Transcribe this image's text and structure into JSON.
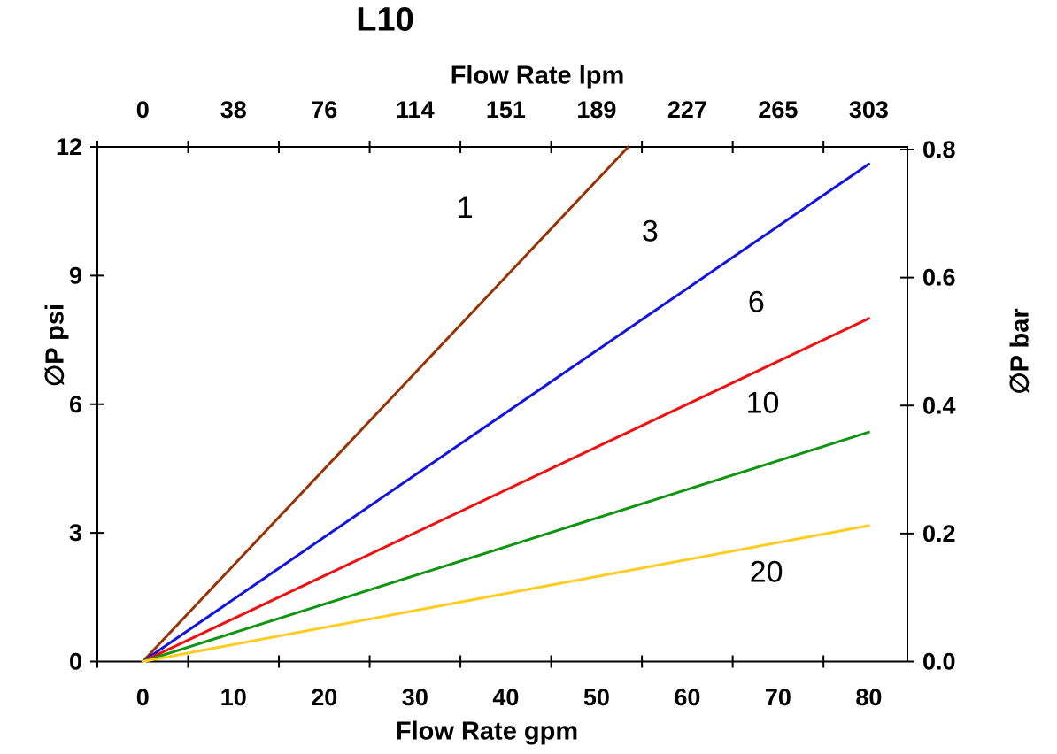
{
  "chart_data": {
    "type": "line",
    "title": "L10",
    "text_color": "#000000",
    "background_color": "#ffffff",
    "axes": {
      "bottom": {
        "label": "Flow Rate gpm",
        "unit": "gpm",
        "range": [
          -5,
          84.25
        ],
        "major_tick_labels": [
          "0",
          "10",
          "20",
          "30",
          "40",
          "50",
          "60",
          "70",
          "80"
        ],
        "major_tick_values": [
          0,
          10,
          20,
          30,
          40,
          50,
          60,
          70,
          80
        ],
        "tick_mark_values": [
          -5,
          5,
          15,
          25,
          35,
          45,
          55,
          65,
          75
        ]
      },
      "top": {
        "label": "Flow Rate lpm",
        "unit": "lpm",
        "major_tick_labels": [
          "0",
          "38",
          "76",
          "114",
          "151",
          "189",
          "227",
          "265",
          "303"
        ],
        "major_tick_values_gpm": [
          0,
          10,
          20,
          30,
          40,
          50,
          60,
          70,
          80
        ],
        "tick_mark_values_gpm": [
          -5,
          5,
          15,
          25,
          35,
          45,
          55,
          65,
          75
        ]
      },
      "left": {
        "label": "∅P psi",
        "unit": "psi",
        "range": [
          0,
          12
        ],
        "major_tick_labels": [
          "0",
          "3",
          "6",
          "9",
          "12"
        ],
        "major_tick_values": [
          0,
          3,
          6,
          9,
          12
        ]
      },
      "right": {
        "label": "∅P bar",
        "unit": "bar",
        "range": [
          0,
          0.8
        ],
        "major_tick_labels": [
          "0.0",
          "0.2",
          "0.4",
          "0.6",
          "0.8"
        ],
        "major_tick_values": [
          0.0,
          0.2,
          0.4,
          0.6,
          0.8
        ]
      }
    },
    "grid": false,
    "legend": "inline curve labels",
    "series": [
      {
        "name": "1",
        "color": "#993305",
        "points_gpm_psi": [
          [
            0,
            0
          ],
          [
            53.5,
            12.0
          ]
        ],
        "slope_psi_per_gpm": 0.224,
        "label_at_gpm_psi": [
          35.5,
          10.6
        ]
      },
      {
        "name": "3",
        "color": "#1414DF",
        "points_gpm_psi": [
          [
            0,
            0
          ],
          [
            80,
            11.6
          ]
        ],
        "slope_psi_per_gpm": 0.145,
        "label_at_gpm_psi": [
          55.9,
          10.05
        ]
      },
      {
        "name": "6",
        "color": "#EE1111",
        "points_gpm_psi": [
          [
            0,
            0
          ],
          [
            80,
            8.0
          ]
        ],
        "slope_psi_per_gpm": 0.1,
        "label_at_gpm_psi": [
          67.6,
          8.4
        ]
      },
      {
        "name": "10",
        "color": "#119412",
        "points_gpm_psi": [
          [
            0,
            0
          ],
          [
            80,
            5.35
          ]
        ],
        "slope_psi_per_gpm": 0.067,
        "label_at_gpm_psi": [
          68.3,
          6.05
        ]
      },
      {
        "name": "20",
        "color": "#FFCC22",
        "points_gpm_psi": [
          [
            0,
            0
          ],
          [
            80,
            3.17
          ]
        ],
        "slope_psi_per_gpm": 0.04,
        "label_at_gpm_psi": [
          68.7,
          2.1
        ]
      }
    ]
  }
}
